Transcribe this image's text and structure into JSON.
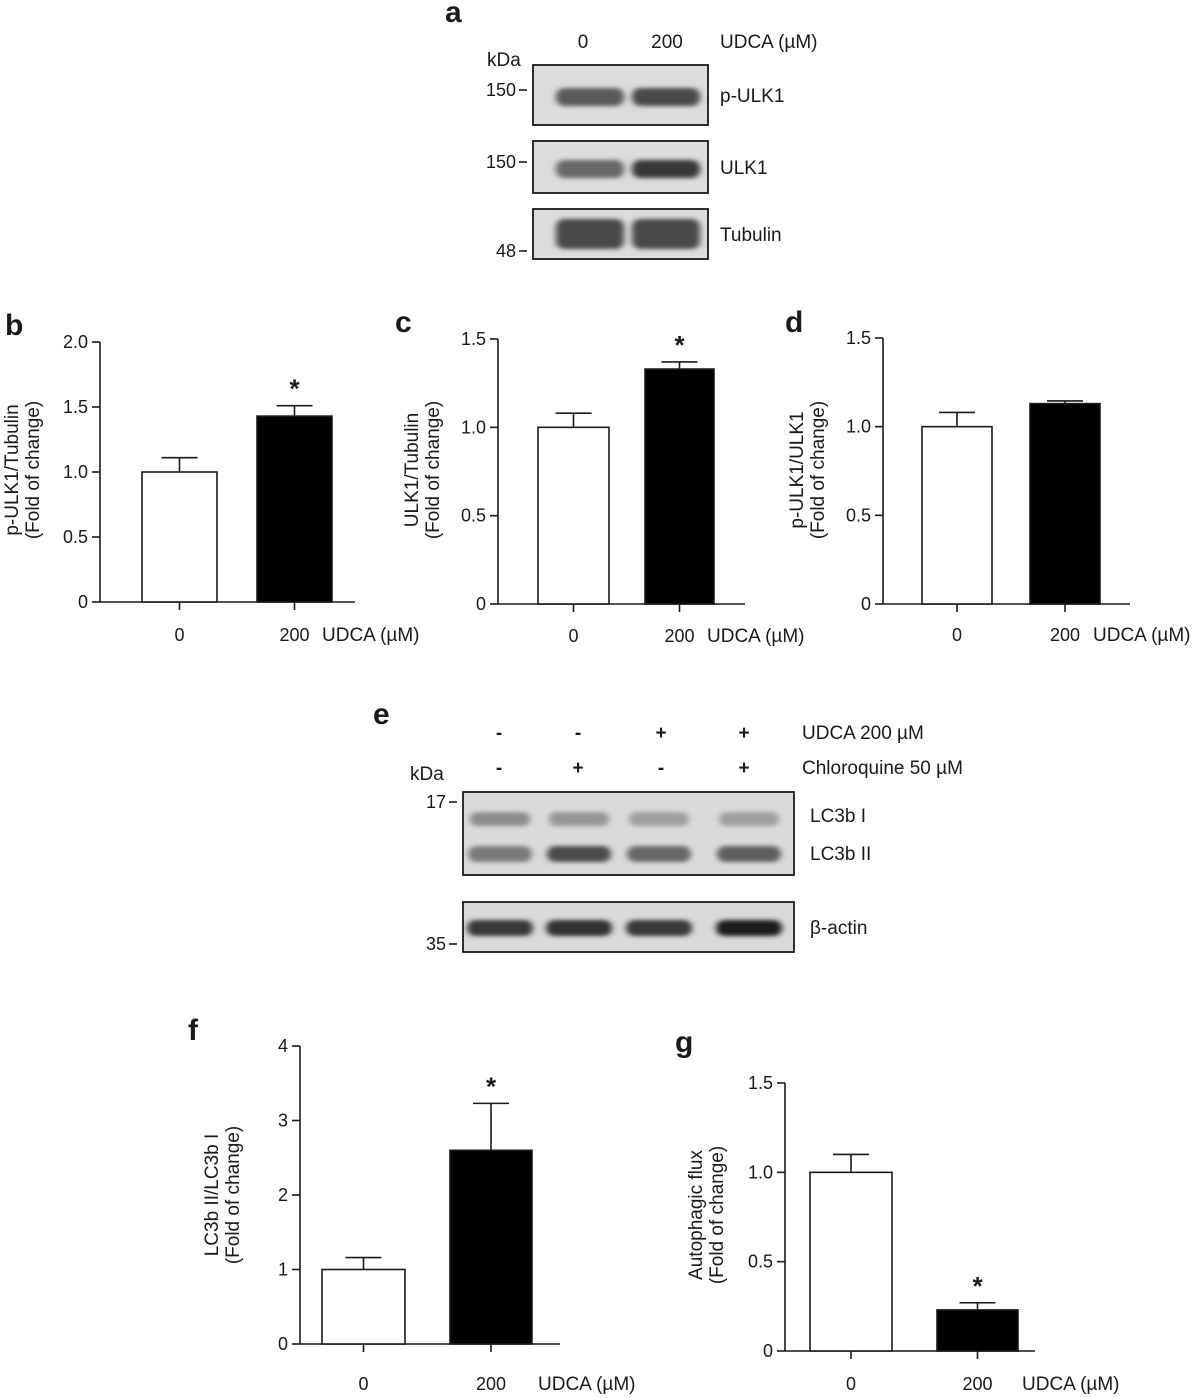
{
  "panel_a": {
    "letter": "a",
    "kda_label": "kDa",
    "lane_labels": [
      "0",
      "200"
    ],
    "treatment_label": "UDCA (µM)",
    "blots": [
      {
        "name": "p-ULK1",
        "marker": "150",
        "bands": [
          0.62,
          0.72
        ]
      },
      {
        "name": "ULK1",
        "marker": "150",
        "bands": [
          0.55,
          0.8
        ]
      },
      {
        "name": "Tubulin",
        "marker": "48",
        "bands": [
          0.72,
          0.72
        ]
      }
    ]
  },
  "panel_e": {
    "letter": "e",
    "kda_label": "kDa",
    "rows": [
      {
        "label": "UDCA 200 µM",
        "signs": [
          "-",
          "-",
          "+",
          "+"
        ]
      },
      {
        "label": "Chloroquine 50 µM",
        "signs": [
          "-",
          "+",
          "-",
          "+"
        ]
      }
    ],
    "lc3_blot": {
      "marker": "17",
      "band_labels": [
        "LC3b I",
        "LC3b II"
      ],
      "band1": [
        0.35,
        0.3,
        0.25,
        0.25
      ],
      "band2": [
        0.45,
        0.7,
        0.55,
        0.6
      ]
    },
    "actin_blot": {
      "marker": "35",
      "band_label": "β-actin",
      "bands": [
        0.8,
        0.85,
        0.8,
        0.95
      ]
    }
  },
  "chart_data": [
    {
      "panel": "b",
      "type": "bar",
      "categories": [
        "0",
        "200"
      ],
      "values": [
        1.0,
        1.43
      ],
      "errors": [
        0.11,
        0.08
      ],
      "significant": [
        false,
        true
      ],
      "ylabel": [
        "p-ULK1/Tubulin",
        "(Fold of change)"
      ],
      "xlabel": "UDCA (µM)",
      "ylim": [
        0,
        2.0
      ],
      "yticks": [
        "0",
        "0.5",
        "1.0",
        "1.5",
        "2.0"
      ],
      "colors": [
        "#ffffff",
        "#000000"
      ]
    },
    {
      "panel": "c",
      "type": "bar",
      "categories": [
        "0",
        "200"
      ],
      "values": [
        1.0,
        1.33
      ],
      "errors": [
        0.08,
        0.04
      ],
      "significant": [
        false,
        true
      ],
      "ylabel": [
        "ULK1/Tubulin",
        "(Fold of change)"
      ],
      "xlabel": "UDCA (µM)",
      "ylim": [
        0,
        1.5
      ],
      "yticks": [
        "0",
        "0.5",
        "1.0",
        "1.5"
      ],
      "colors": [
        "#ffffff",
        "#000000"
      ]
    },
    {
      "panel": "d",
      "type": "bar",
      "categories": [
        "0",
        "200"
      ],
      "values": [
        1.0,
        1.13
      ],
      "errors": [
        0.08,
        0.015
      ],
      "significant": [
        false,
        false
      ],
      "ylabel": [
        "p-ULK1/ULK1",
        "(Fold of change)"
      ],
      "xlabel": "UDCA (µM)",
      "ylim": [
        0,
        1.5
      ],
      "yticks": [
        "0",
        "0.5",
        "1.0",
        "1.5"
      ],
      "colors": [
        "#ffffff",
        "#000000"
      ]
    },
    {
      "panel": "f",
      "type": "bar",
      "categories": [
        "0",
        "200"
      ],
      "values": [
        1.0,
        2.6
      ],
      "errors": [
        0.16,
        0.63
      ],
      "significant": [
        false,
        true
      ],
      "ylabel": [
        "LC3b II/LC3b I",
        "(Fold of change)"
      ],
      "xlabel": "UDCA (µM)",
      "ylim": [
        0,
        4
      ],
      "yticks": [
        "0",
        "1",
        "2",
        "3",
        "4"
      ],
      "colors": [
        "#ffffff",
        "#000000"
      ]
    },
    {
      "panel": "g",
      "type": "bar",
      "categories": [
        "0",
        "200"
      ],
      "values": [
        1.0,
        0.23
      ],
      "errors": [
        0.1,
        0.04
      ],
      "significant": [
        false,
        true
      ],
      "ylabel": [
        "Autophagic flux",
        "(Fold of change)"
      ],
      "xlabel": "UDCA (µM)",
      "ylim": [
        0,
        1.5
      ],
      "yticks": [
        "0",
        "0.5",
        "1.0",
        "1.5"
      ],
      "colors": [
        "#ffffff",
        "#000000"
      ]
    }
  ],
  "significance_marker": "*"
}
